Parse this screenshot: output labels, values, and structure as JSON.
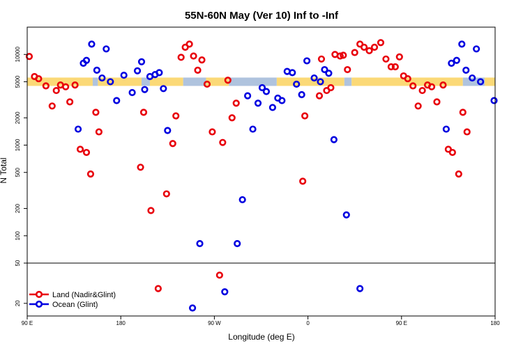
{
  "chart_data": {
    "type": "scatter",
    "title": "55N-60N May (Ver 10)   Inf to -Inf",
    "xlabel": "Longitude (deg E)",
    "ylabel": "N Total",
    "x_ticks": [
      {
        "value": 90,
        "label": "90 E"
      },
      {
        "value": 180,
        "label": "180"
      },
      {
        "value": 270,
        "label": "90 W"
      },
      {
        "value": 360,
        "label": "0"
      },
      {
        "value": 450,
        "label": "90 E"
      },
      {
        "value": 540,
        "label": "180"
      }
    ],
    "xlim": [
      90,
      540
    ],
    "y_scale": "log",
    "upper_panel_ylim": [
      50,
      20000
    ],
    "lower_panel_ylim": [
      15,
      50
    ],
    "y_ticks_upper": [
      {
        "value": 100,
        "label": "100"
      },
      {
        "value": 200,
        "label": "200"
      },
      {
        "value": 500,
        "label": "500"
      },
      {
        "value": 1000,
        "label": "1000"
      },
      {
        "value": 2000,
        "label": "2000"
      },
      {
        "value": 5000,
        "label": "5000"
      },
      {
        "value": 10000,
        "label": "10000"
      }
    ],
    "y_ticks_lower": [
      {
        "value": 20,
        "label": "20"
      },
      {
        "value": 50,
        "label": "50"
      }
    ],
    "band": {
      "center": 5000,
      "segments": [
        {
          "x0": 90,
          "x1": 153,
          "color": "#FBD977"
        },
        {
          "x0": 153,
          "x1": 158,
          "color": "#AFC3DE"
        },
        {
          "x0": 158,
          "x1": 200,
          "color": "#FBD977"
        },
        {
          "x0": 200,
          "x1": 208,
          "color": "#AFC3DE"
        },
        {
          "x0": 208,
          "x1": 240,
          "color": "#FBD977"
        },
        {
          "x0": 240,
          "x1": 262,
          "color": "#AFC3DE"
        },
        {
          "x0": 262,
          "x1": 284,
          "color": "#FBD977"
        },
        {
          "x0": 284,
          "x1": 330,
          "color": "#AFC3DE"
        },
        {
          "x0": 330,
          "x1": 395,
          "color": "#FBD977"
        },
        {
          "x0": 395,
          "x1": 402,
          "color": "#AFC3DE"
        },
        {
          "x0": 402,
          "x1": 509,
          "color": "#FBD977"
        },
        {
          "x0": 509,
          "x1": 530,
          "color": "#AFC3DE"
        },
        {
          "x0": 530,
          "x1": 540,
          "color": "#FBD977"
        }
      ]
    },
    "series": [
      {
        "name": "Land (Nadir&Glint)",
        "color": "#E8000B",
        "points": [
          [
            92,
            9500
          ],
          [
            97,
            5700
          ],
          [
            101,
            5400
          ],
          [
            108,
            4500
          ],
          [
            114,
            2700
          ],
          [
            118,
            4000
          ],
          [
            122,
            4600
          ],
          [
            127,
            4400
          ],
          [
            131,
            3000
          ],
          [
            136,
            4600
          ],
          [
            141,
            900
          ],
          [
            147,
            830
          ],
          [
            151,
            480
          ],
          [
            156,
            2300
          ],
          [
            159,
            1400
          ],
          [
            199,
            570
          ],
          [
            202,
            2300
          ],
          [
            209,
            190
          ],
          [
            216,
            28
          ],
          [
            224,
            290
          ],
          [
            230,
            1040
          ],
          [
            233,
            2100
          ],
          [
            238,
            9300
          ],
          [
            242,
            12000
          ],
          [
            246,
            13000
          ],
          [
            250,
            9600
          ],
          [
            254,
            6700
          ],
          [
            258,
            8700
          ],
          [
            263,
            4700
          ],
          [
            268,
            1400
          ],
          [
            275,
            38
          ],
          [
            278,
            1070
          ],
          [
            283,
            5200
          ],
          [
            287,
            2000
          ],
          [
            291,
            2900
          ],
          [
            355,
            400
          ],
          [
            357,
            2100
          ],
          [
            371,
            3500
          ],
          [
            373,
            8900
          ],
          [
            378,
            4000
          ],
          [
            382,
            4300
          ],
          [
            386,
            10000
          ],
          [
            391,
            9600
          ],
          [
            394,
            9800
          ],
          [
            398,
            6800
          ],
          [
            405,
            10500
          ],
          [
            410,
            13000
          ],
          [
            414,
            12000
          ],
          [
            419,
            11000
          ],
          [
            424,
            12000
          ],
          [
            430,
            13500
          ],
          [
            435,
            8900
          ],
          [
            440,
            7300
          ],
          [
            444,
            7300
          ],
          [
            448,
            9400
          ],
          [
            452,
            5800
          ],
          [
            456,
            5400
          ],
          [
            461,
            4500
          ],
          [
            466,
            2700
          ],
          [
            470,
            4000
          ],
          [
            475,
            4600
          ],
          [
            479,
            4400
          ],
          [
            484,
            3000
          ],
          [
            490,
            4600
          ],
          [
            495,
            900
          ],
          [
            499,
            830
          ],
          [
            505,
            480
          ],
          [
            509,
            2300
          ],
          [
            513,
            1400
          ]
        ]
      },
      {
        "name": "Ocean (Glint)",
        "color": "#0000E0",
        "points": [
          [
            139,
            1500
          ],
          [
            144,
            8000
          ],
          [
            147,
            8600
          ],
          [
            152,
            13000
          ],
          [
            157,
            6700
          ],
          [
            162,
            5500
          ],
          [
            166,
            11500
          ],
          [
            170,
            5000
          ],
          [
            176,
            3100
          ],
          [
            183,
            5900
          ],
          [
            191,
            3800
          ],
          [
            196,
            6600
          ],
          [
            200,
            8300
          ],
          [
            203,
            4100
          ],
          [
            208,
            5700
          ],
          [
            213,
            6000
          ],
          [
            217,
            6300
          ],
          [
            221,
            4200
          ],
          [
            225,
            1450
          ],
          [
            249,
            18
          ],
          [
            256,
            82
          ],
          [
            280,
            26
          ],
          [
            292,
            82
          ],
          [
            297,
            250
          ],
          [
            302,
            3500
          ],
          [
            307,
            1500
          ],
          [
            312,
            2900
          ],
          [
            316,
            4300
          ],
          [
            320,
            3900
          ],
          [
            326,
            2600
          ],
          [
            331,
            3300
          ],
          [
            335,
            3100
          ],
          [
            340,
            6500
          ],
          [
            345,
            6300
          ],
          [
            349,
            4700
          ],
          [
            354,
            3600
          ],
          [
            359,
            8500
          ],
          [
            366,
            5500
          ],
          [
            372,
            5000
          ],
          [
            376,
            6800
          ],
          [
            380,
            6200
          ],
          [
            385,
            1150
          ],
          [
            397,
            170
          ],
          [
            410,
            28
          ],
          [
            493,
            1500
          ],
          [
            498,
            8000
          ],
          [
            503,
            8600
          ],
          [
            508,
            13000
          ],
          [
            512,
            6700
          ],
          [
            518,
            5500
          ],
          [
            522,
            11500
          ],
          [
            526,
            5000
          ],
          [
            539,
            3100
          ]
        ]
      }
    ],
    "legend": {
      "placement": "bottom-left"
    }
  }
}
